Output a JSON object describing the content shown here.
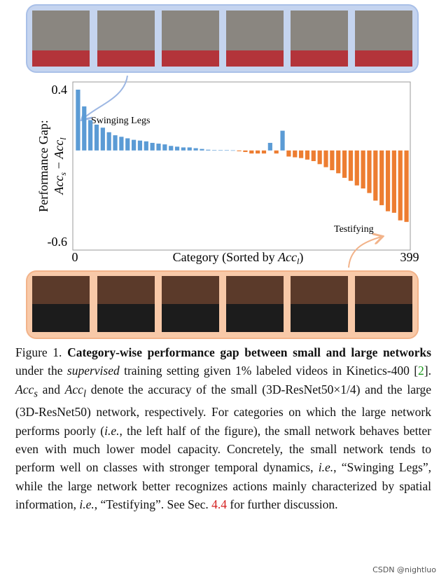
{
  "chart_data": {
    "type": "bar",
    "ylabel": "Performance Gap:",
    "ylabel_formula": [
      "Acc",
      "s",
      " − ",
      "Acc",
      "l"
    ],
    "xlabel": [
      "Category (Sorted by ",
      "Acc",
      "l",
      ")"
    ],
    "values": [
      0.4,
      0.29,
      0.2,
      0.17,
      0.15,
      0.12,
      0.1,
      0.09,
      0.08,
      0.07,
      0.065,
      0.06,
      0.05,
      0.045,
      0.04,
      0.03,
      0.025,
      0.02,
      0.02,
      0.015,
      0.01,
      0.005,
      0.003,
      0.002,
      0.002,
      0.001,
      -0.005,
      -0.01,
      -0.02,
      -0.02,
      -0.02,
      0.05,
      -0.02,
      0.13,
      -0.04,
      -0.045,
      -0.05,
      -0.06,
      -0.07,
      -0.09,
      -0.11,
      -0.13,
      -0.15,
      -0.18,
      -0.2,
      -0.23,
      -0.25,
      -0.28,
      -0.33,
      -0.36,
      -0.4,
      -0.41,
      -0.46,
      -0.47
    ],
    "positive_color": "#5b9bd5",
    "negative_color": "#ed7d31",
    "ylim": [
      -0.6,
      0.4
    ],
    "yticks": [
      0.4,
      -0.6
    ],
    "xlim": [
      0,
      399
    ],
    "xticks": [
      0,
      399
    ],
    "annotations": [
      "Swinging Legs",
      "Testifying"
    ]
  },
  "caption": {
    "segments": [
      {
        "text": "Figure 1. ",
        "style": "normal"
      },
      {
        "text": "Category-wise performance gap between small and large networks",
        "style": "bold"
      },
      {
        "text": " under the ",
        "style": "normal"
      },
      {
        "text": "supervised",
        "style": "italic"
      },
      {
        "text": " training setting given 1% labeled videos in Kinetics-400 [",
        "style": "normal"
      },
      {
        "text": "2",
        "style": "green"
      },
      {
        "text": "]. ",
        "style": "normal"
      },
      {
        "text": "Acc",
        "style": "italic"
      },
      {
        "text": "s",
        "style": "sub"
      },
      {
        "text": " and ",
        "style": "normal"
      },
      {
        "text": "Acc",
        "style": "italic"
      },
      {
        "text": "l",
        "style": "sub"
      },
      {
        "text": " denote the accuracy of the small (3D-ResNet50×1/4) and the large (3D-ResNet50) network, respectively. For categories on which the large network performs poorly (",
        "style": "normal"
      },
      {
        "text": "i.e.",
        "style": "italic"
      },
      {
        "text": ", the left half of the figure), the small network behaves better even with much lower model capacity. Concretely, the small network tends to perform well on classes with stronger temporal dynamics, ",
        "style": "normal"
      },
      {
        "text": "i.e.",
        "style": "italic"
      },
      {
        "text": ", “Swinging Legs”, while the large network better recognizes actions mainly characterized by spatial information, ",
        "style": "normal"
      },
      {
        "text": "i.e.",
        "style": "italic"
      },
      {
        "text": ", “Testifying”. See Sec. ",
        "style": "normal"
      },
      {
        "text": "4.4",
        "style": "red"
      },
      {
        "text": " for further discussion.",
        "style": "normal"
      }
    ]
  },
  "watermark": "CSDN @nightluo"
}
